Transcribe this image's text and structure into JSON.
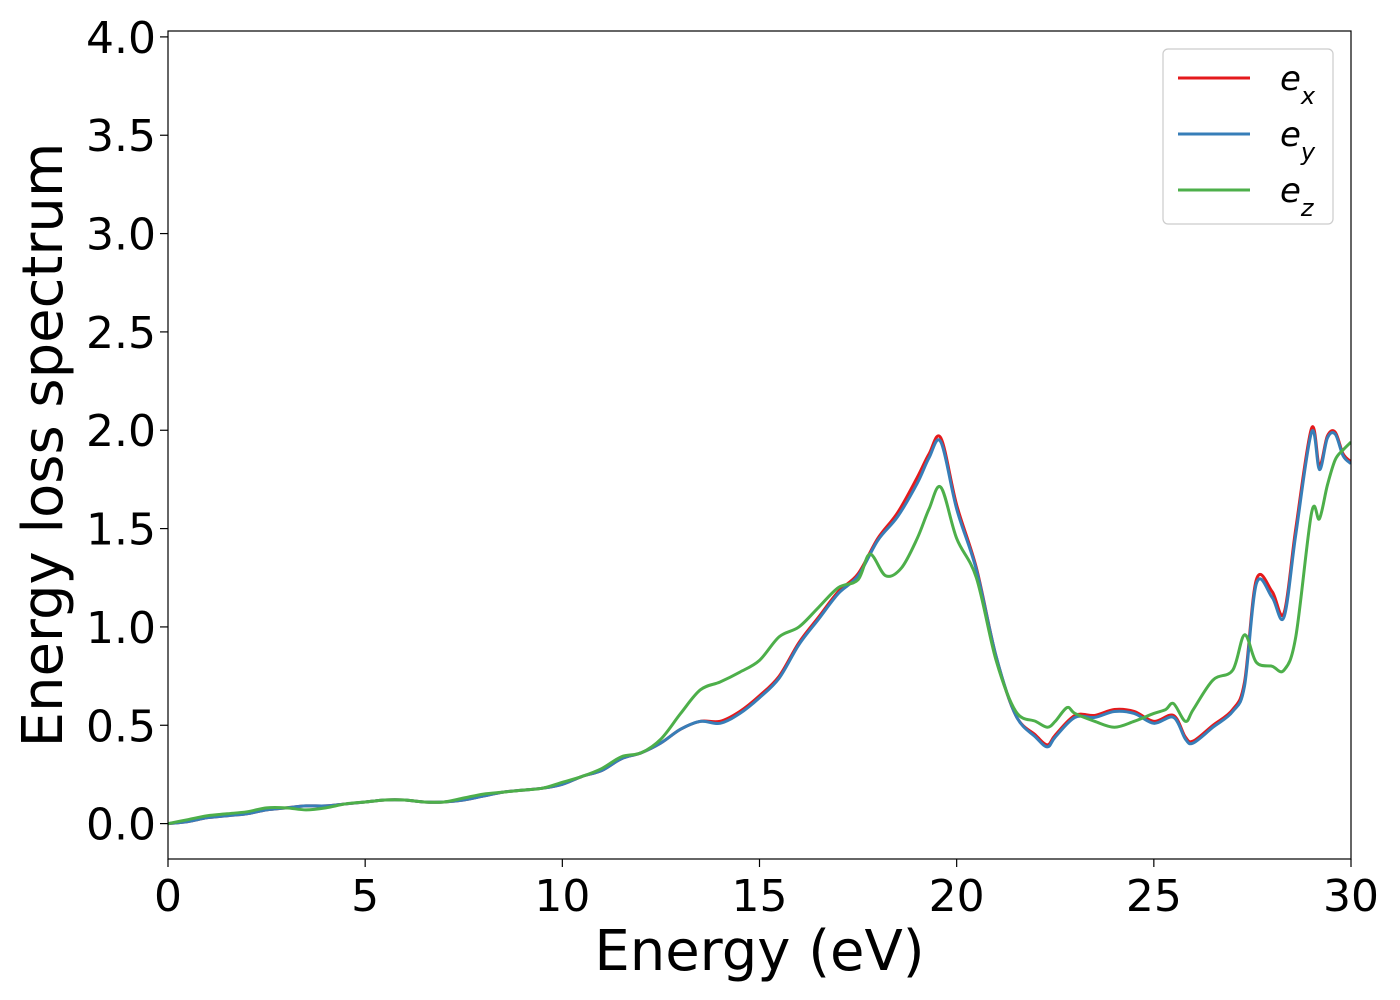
{
  "chart_data": {
    "type": "line",
    "xlabel": "Energy (eV)",
    "ylabel": "Energy loss spectrum",
    "xlim": [
      0,
      30
    ],
    "ylim": [
      -0.18,
      4.03
    ],
    "xticks": [
      "0",
      "5",
      "10",
      "15",
      "20",
      "25",
      "30"
    ],
    "yticks": [
      "0.0",
      "0.5",
      "1.0",
      "1.5",
      "2.0",
      "2.5",
      "3.0",
      "3.5",
      "4.0"
    ],
    "grid": false,
    "legend_position": "top-right",
    "series": [
      {
        "name": "e_x",
        "label_base": "e",
        "label_sub": "x",
        "color": "#e41a1c",
        "x": [
          0,
          0.5,
          1,
          1.5,
          2,
          2.5,
          3,
          3.5,
          4,
          4.5,
          5,
          5.5,
          6,
          6.5,
          7,
          7.5,
          8,
          8.5,
          9,
          9.5,
          10,
          10.5,
          11,
          11.5,
          12,
          12.5,
          13,
          13.5,
          14,
          14.5,
          15,
          15.5,
          16,
          16.5,
          17,
          17.5,
          18,
          18.5,
          19,
          19.3,
          19.6,
          20,
          20.5,
          21,
          21.5,
          22,
          22.3,
          22.5,
          23,
          23.5,
          24,
          24.5,
          25,
          25.5,
          25.8,
          26,
          26.5,
          27,
          27.3,
          27.6,
          28,
          28.3,
          28.6,
          29,
          29.2,
          29.4,
          29.6,
          29.8,
          30
        ],
        "y": [
          0.0,
          0.01,
          0.03,
          0.04,
          0.05,
          0.07,
          0.08,
          0.09,
          0.09,
          0.1,
          0.11,
          0.12,
          0.12,
          0.11,
          0.11,
          0.12,
          0.14,
          0.16,
          0.17,
          0.18,
          0.2,
          0.24,
          0.27,
          0.33,
          0.36,
          0.41,
          0.48,
          0.52,
          0.52,
          0.57,
          0.65,
          0.75,
          0.92,
          1.05,
          1.18,
          1.27,
          1.45,
          1.58,
          1.76,
          1.88,
          1.96,
          1.62,
          1.3,
          0.85,
          0.55,
          0.45,
          0.4,
          0.45,
          0.55,
          0.55,
          0.58,
          0.57,
          0.52,
          0.55,
          0.44,
          0.42,
          0.5,
          0.58,
          0.72,
          1.24,
          1.18,
          1.07,
          1.5,
          2.01,
          1.82,
          1.97,
          1.99,
          1.88,
          1.84
        ]
      },
      {
        "name": "e_y",
        "label_base": "e",
        "label_sub": "y",
        "color": "#377eb8",
        "x": [
          0,
          0.5,
          1,
          1.5,
          2,
          2.5,
          3,
          3.5,
          4,
          4.5,
          5,
          5.5,
          6,
          6.5,
          7,
          7.5,
          8,
          8.5,
          9,
          9.5,
          10,
          10.5,
          11,
          11.5,
          12,
          12.5,
          13,
          13.5,
          14,
          14.5,
          15,
          15.5,
          16,
          16.5,
          17,
          17.5,
          18,
          18.5,
          19,
          19.3,
          19.6,
          20,
          20.5,
          21,
          21.5,
          22,
          22.3,
          22.5,
          23,
          23.5,
          24,
          24.5,
          25,
          25.5,
          25.8,
          26,
          26.5,
          27,
          27.3,
          27.6,
          28,
          28.3,
          28.6,
          29,
          29.2,
          29.4,
          29.6,
          29.8,
          30
        ],
        "y": [
          0.0,
          0.01,
          0.03,
          0.04,
          0.05,
          0.07,
          0.08,
          0.09,
          0.09,
          0.1,
          0.11,
          0.12,
          0.12,
          0.11,
          0.11,
          0.12,
          0.14,
          0.16,
          0.17,
          0.18,
          0.2,
          0.24,
          0.27,
          0.33,
          0.36,
          0.41,
          0.48,
          0.52,
          0.51,
          0.56,
          0.64,
          0.74,
          0.91,
          1.04,
          1.17,
          1.26,
          1.44,
          1.56,
          1.73,
          1.86,
          1.94,
          1.6,
          1.29,
          0.85,
          0.55,
          0.44,
          0.39,
          0.44,
          0.54,
          0.54,
          0.57,
          0.56,
          0.51,
          0.54,
          0.43,
          0.41,
          0.49,
          0.57,
          0.7,
          1.22,
          1.15,
          1.05,
          1.47,
          1.99,
          1.8,
          1.96,
          1.98,
          1.87,
          1.83
        ]
      },
      {
        "name": "e_z",
        "label_base": "e",
        "label_sub": "z",
        "color": "#4daf4a",
        "x": [
          0,
          0.5,
          1,
          1.5,
          2,
          2.5,
          3,
          3.5,
          4,
          4.5,
          5,
          5.5,
          6,
          6.5,
          7,
          7.5,
          8,
          8.5,
          9,
          9.5,
          10,
          10.5,
          11,
          11.5,
          12,
          12.5,
          13,
          13.5,
          14,
          14.5,
          15,
          15.5,
          16,
          16.5,
          17,
          17.5,
          17.8,
          18.2,
          18.6,
          19,
          19.3,
          19.6,
          20,
          20.5,
          21,
          21.5,
          22,
          22.3,
          22.5,
          22.8,
          23,
          23.5,
          24,
          24.5,
          25,
          25.3,
          25.5,
          25.8,
          26,
          26.5,
          27,
          27.3,
          27.6,
          28,
          28.3,
          28.6,
          29,
          29.2,
          29.4,
          29.6,
          29.8,
          30
        ],
        "y": [
          0.0,
          0.02,
          0.04,
          0.05,
          0.06,
          0.08,
          0.08,
          0.07,
          0.08,
          0.1,
          0.11,
          0.12,
          0.12,
          0.11,
          0.11,
          0.13,
          0.15,
          0.16,
          0.17,
          0.18,
          0.21,
          0.24,
          0.28,
          0.34,
          0.36,
          0.43,
          0.56,
          0.68,
          0.72,
          0.77,
          0.83,
          0.95,
          1.0,
          1.1,
          1.2,
          1.24,
          1.37,
          1.26,
          1.3,
          1.45,
          1.6,
          1.71,
          1.45,
          1.25,
          0.83,
          0.57,
          0.52,
          0.49,
          0.52,
          0.59,
          0.56,
          0.52,
          0.49,
          0.52,
          0.56,
          0.58,
          0.61,
          0.52,
          0.58,
          0.73,
          0.78,
          0.96,
          0.82,
          0.8,
          0.78,
          0.95,
          1.58,
          1.55,
          1.72,
          1.85,
          1.9,
          1.94
        ]
      }
    ]
  }
}
